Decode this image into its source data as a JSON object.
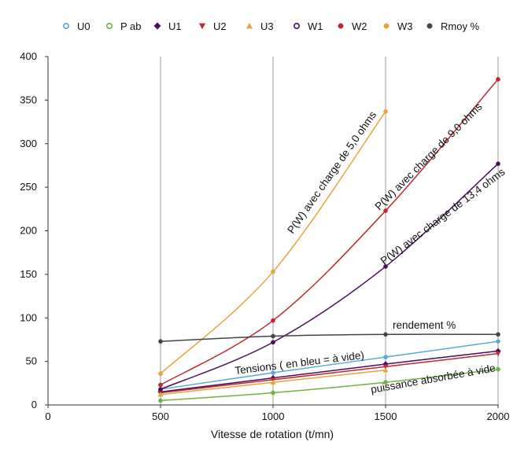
{
  "chart_data": {
    "type": "line",
    "title": "",
    "xlabel": "Vitesse de rotation (t/mn)",
    "ylabel": "",
    "xlim": [
      0,
      2000
    ],
    "ylim": [
      0,
      400
    ],
    "x_ticks": [
      0,
      500,
      1000,
      1500,
      2000
    ],
    "y_ticks": [
      0,
      50,
      100,
      150,
      200,
      250,
      300,
      350,
      400
    ],
    "grid": "vertical",
    "legend_position": "top",
    "x": [
      500,
      1000,
      1500,
      2000
    ],
    "series": [
      {
        "name": "U0",
        "color": "#5aa9d8",
        "marker": "circle-open",
        "values": [
          18,
          37,
          55,
          73
        ]
      },
      {
        "name": "P ab",
        "color": "#6db33f",
        "marker": "circle-open",
        "values": [
          5,
          14,
          26,
          41
        ]
      },
      {
        "name": "U1",
        "color": "#4b0e5c",
        "marker": "diamond",
        "values": [
          15,
          31,
          47,
          62
        ]
      },
      {
        "name": "U2",
        "color": "#c1272d",
        "marker": "triangle-down",
        "values": [
          14,
          29,
          44,
          59
        ]
      },
      {
        "name": "U3",
        "color": "#e8a33d",
        "marker": "triangle-up",
        "values": [
          12,
          26,
          40,
          null
        ]
      },
      {
        "name": "W1",
        "color": "#4b0e5c",
        "marker": "circle-open",
        "values": [
          18,
          72,
          159,
          277
        ]
      },
      {
        "name": "W2",
        "color": "#c1272d",
        "marker": "circle",
        "values": [
          23,
          97,
          223,
          374
        ]
      },
      {
        "name": "W3",
        "color": "#e8a33d",
        "marker": "circle",
        "values": [
          36,
          153,
          337,
          null
        ]
      },
      {
        "name": "Rmoy %",
        "color": "#444444",
        "marker": "circle",
        "values": [
          73,
          79,
          81,
          81
        ]
      }
    ],
    "annotations": [
      {
        "text": "P(W) avec charge de 5,0 ohms",
        "series": "W3"
      },
      {
        "text": "P(W) avec charge de 9,0 ohms",
        "series": "W2"
      },
      {
        "text": "P(W) avec charge de 13,4 ohms",
        "series": "W1"
      },
      {
        "text": "rendement %",
        "series": "Rmoy %"
      },
      {
        "text": "Tensions ( en bleu = à vide)",
        "series": "U0"
      },
      {
        "text": "puissance absorbée à vide",
        "series": "P ab"
      }
    ]
  }
}
